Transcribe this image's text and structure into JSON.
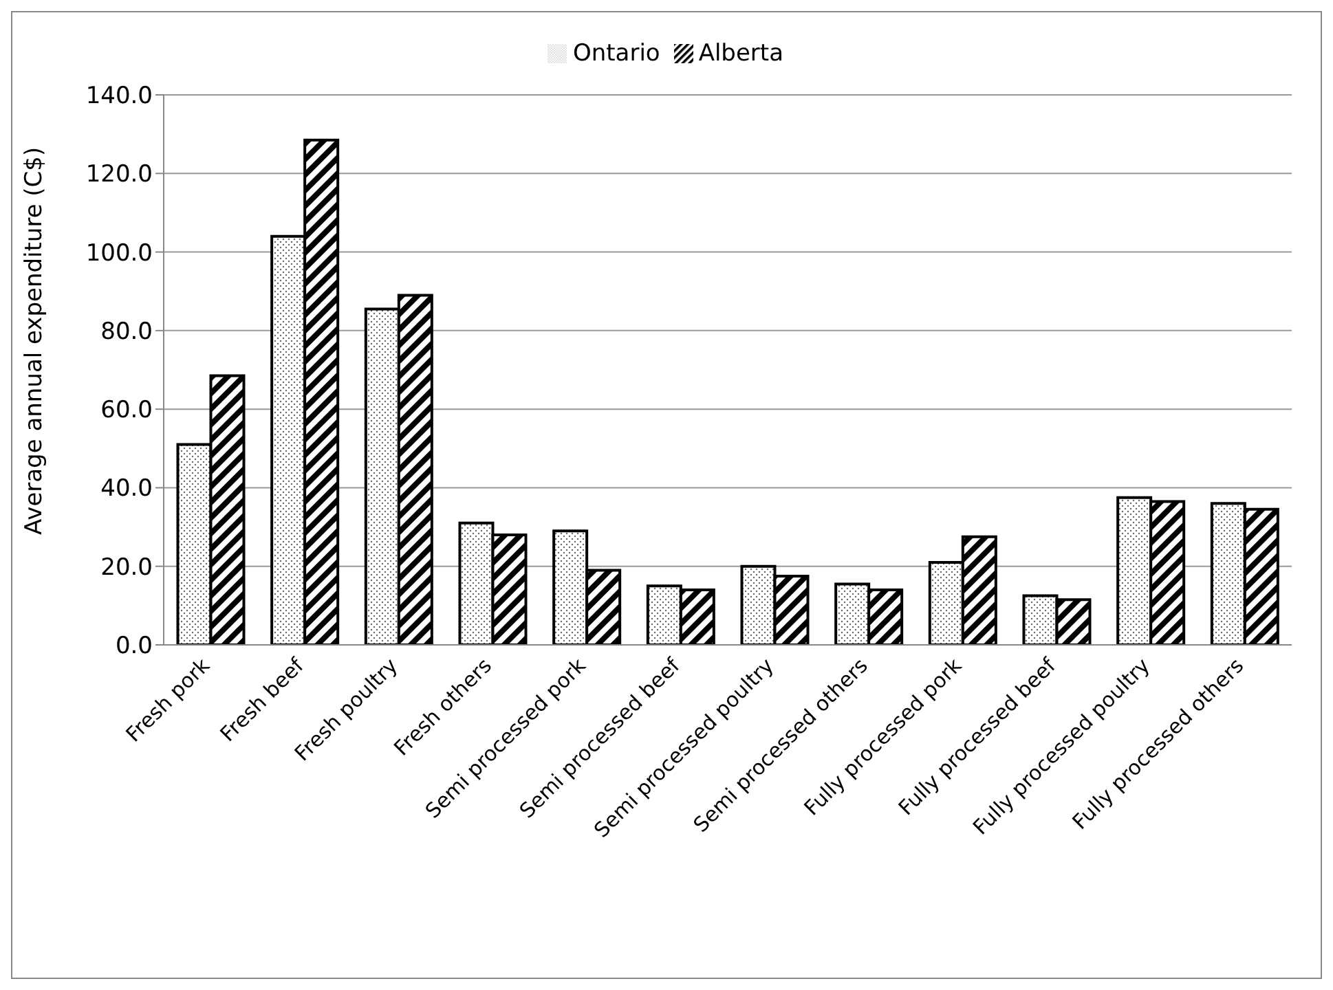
{
  "chart_data": {
    "type": "bar",
    "ylabel": "Average annual expenditure (C$)",
    "categories": [
      "Fresh pork",
      "Fresh beef",
      "Fresh poultry",
      "Fresh others",
      "Semi processed pork",
      "Semi processed beef",
      "Semi processed poultry",
      "Semi processed others",
      "Fully processed pork",
      "Fully processed beef",
      "Fully processed poultry",
      "Fully processed others"
    ],
    "series": [
      {
        "name": "Ontario",
        "color": "#000000",
        "values": [
          51,
          104,
          85.5,
          31,
          29,
          15,
          20,
          15.5,
          21,
          12.5,
          37.5,
          36
        ]
      },
      {
        "name": "Alberta",
        "color": "#000000",
        "values": [
          68.5,
          128.5,
          89,
          28,
          19,
          14,
          17.5,
          14,
          27.5,
          11.5,
          36.5,
          34.5
        ]
      }
    ],
    "ylim": [
      0,
      140
    ],
    "yticks": [
      {
        "value": 0,
        "label": "0.0"
      },
      {
        "value": 20,
        "label": "20.0"
      },
      {
        "value": 40,
        "label": "40.0"
      },
      {
        "value": 60,
        "label": "60.0"
      },
      {
        "value": 80,
        "label": "80.0"
      },
      {
        "value": 100,
        "label": "100.0"
      },
      {
        "value": 120,
        "label": "120.0"
      },
      {
        "value": 140,
        "label": "140.0"
      }
    ],
    "grid": "y",
    "legend": "top"
  }
}
